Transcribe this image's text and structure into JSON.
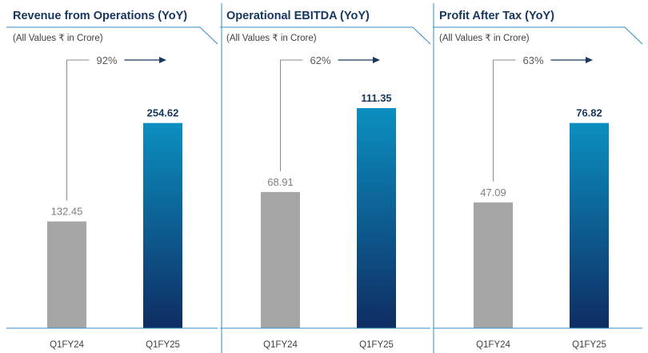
{
  "colors": {
    "title": "#17365d",
    "accent_line": "#2f8fc4",
    "prior_bar": "#a6a6a6",
    "current_bar_top": "#0b8fc0",
    "current_bar_bottom": "#0f2d63",
    "muted_text": "#7f7f7f",
    "arrow": "#17375e"
  },
  "chart_data": [
    {
      "type": "bar",
      "title": "Revenue from Operations (YoY)",
      "subtitle": "(All Values ₹ in Crore)",
      "categories": [
        "Q1FY24",
        "Q1FY25"
      ],
      "values": [
        132.45,
        254.62
      ],
      "value_labels": [
        "132.45",
        "254.62"
      ],
      "growth_label": "92%",
      "ylim": [
        0,
        298
      ]
    },
    {
      "type": "bar",
      "title": "Operational EBITDA (YoY)",
      "subtitle": "(All Values ₹ in Crore)",
      "categories": [
        "Q1FY24",
        "Q1FY25"
      ],
      "values": [
        68.91,
        111.35
      ],
      "value_labels": [
        "68.91",
        "111.35"
      ],
      "growth_label": "62%",
      "ylim": [
        0,
        121.5
      ]
    },
    {
      "type": "bar",
      "title": "Profit After Tax (YoY)",
      "subtitle": "(All Values ₹ in Crore)",
      "categories": [
        "Q1FY24",
        "Q1FY25"
      ],
      "values": [
        47.09,
        76.82
      ],
      "value_labels": [
        "47.09",
        "76.82"
      ],
      "growth_label": "63%",
      "ylim": [
        0,
        89.9
      ]
    }
  ]
}
